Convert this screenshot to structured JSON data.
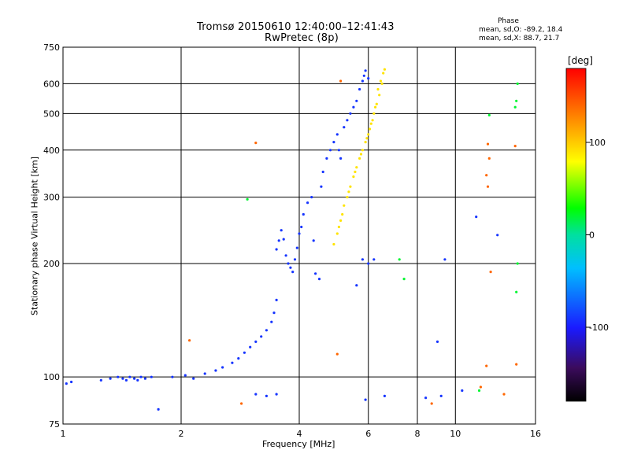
{
  "header": {
    "title_line1": "Tromsø 20150610 12:40:00–12:41:43",
    "title_line2": "RwPretec (8p)"
  },
  "phase_box": {
    "heading": "Phase",
    "line_o": "mean, sd,O: -89.2, 18.4",
    "line_x": "mean, sd,X: 88.7, 21.7"
  },
  "colorbar": {
    "title": "[deg]",
    "tick_labels": [
      "100",
      "0",
      "-100"
    ],
    "tick_values": [
      100,
      0,
      -100
    ],
    "range": [
      -180,
      180
    ],
    "colormap": "rainbow"
  },
  "chart_data": {
    "type": "scatter",
    "xlabel": "Frequency [MHz]",
    "ylabel": "Stationary phase Virtual Height [km]",
    "xscale": "log",
    "yscale": "log",
    "xlim": [
      1,
      16
    ],
    "ylim": [
      75,
      750
    ],
    "x_ticks": [
      1,
      2,
      4,
      6,
      8,
      10,
      16
    ],
    "x_tick_labels": [
      "1",
      "2",
      "4",
      "6",
      "8",
      "10",
      "16"
    ],
    "y_ticks": [
      75,
      100,
      200,
      300,
      400,
      500,
      600,
      750
    ],
    "y_tick_labels": [
      "75",
      "100",
      "200",
      "300",
      "400",
      "500",
      "600",
      "750"
    ],
    "grid": true,
    "color_dimension": "phase [deg]",
    "traces": [
      {
        "mode": "O",
        "phase_deg": -90,
        "points": [
          [
            1.02,
            96
          ],
          [
            1.05,
            97
          ],
          [
            1.25,
            98
          ],
          [
            1.32,
            99
          ],
          [
            1.38,
            100
          ],
          [
            1.42,
            99
          ],
          [
            1.45,
            98
          ],
          [
            1.48,
            100
          ],
          [
            1.52,
            99
          ],
          [
            1.55,
            98
          ],
          [
            1.58,
            100
          ],
          [
            1.62,
            99
          ],
          [
            1.68,
            100
          ],
          [
            1.75,
            82
          ],
          [
            1.9,
            100
          ],
          [
            2.05,
            101
          ],
          [
            2.15,
            99
          ],
          [
            2.3,
            102
          ],
          [
            2.45,
            104
          ],
          [
            2.55,
            106
          ],
          [
            2.7,
            109
          ],
          [
            2.8,
            112
          ],
          [
            2.9,
            116
          ],
          [
            3.0,
            120
          ],
          [
            3.1,
            124
          ],
          [
            3.2,
            128
          ],
          [
            3.3,
            133
          ],
          [
            3.4,
            140
          ],
          [
            3.45,
            148
          ],
          [
            3.5,
            160
          ],
          [
            3.5,
            218
          ],
          [
            3.55,
            230
          ],
          [
            3.6,
            245
          ],
          [
            3.65,
            232
          ],
          [
            3.7,
            210
          ],
          [
            3.75,
            200
          ],
          [
            3.8,
            195
          ],
          [
            3.85,
            190
          ],
          [
            3.9,
            205
          ],
          [
            3.95,
            220
          ],
          [
            4.0,
            240
          ],
          [
            4.05,
            250
          ],
          [
            4.1,
            270
          ],
          [
            4.2,
            290
          ],
          [
            4.3,
            300
          ],
          [
            4.35,
            230
          ],
          [
            4.4,
            188
          ],
          [
            4.5,
            182
          ],
          [
            4.55,
            320
          ],
          [
            4.6,
            350
          ],
          [
            4.7,
            380
          ],
          [
            4.8,
            400
          ],
          [
            4.9,
            420
          ],
          [
            5.0,
            440
          ],
          [
            5.05,
            400
          ],
          [
            5.1,
            380
          ],
          [
            5.2,
            460
          ],
          [
            5.3,
            480
          ],
          [
            5.4,
            500
          ],
          [
            5.5,
            520
          ],
          [
            5.6,
            540
          ],
          [
            5.7,
            580
          ],
          [
            5.8,
            610
          ],
          [
            5.85,
            630
          ],
          [
            5.9,
            650
          ],
          [
            6.0,
            620
          ],
          [
            5.6,
            175
          ],
          [
            5.8,
            205
          ],
          [
            6.0,
            200
          ],
          [
            6.2,
            205
          ],
          [
            3.1,
            90
          ],
          [
            3.3,
            89
          ],
          [
            3.5,
            90
          ],
          [
            5.9,
            87
          ],
          [
            6.6,
            89
          ],
          [
            8.4,
            88
          ],
          [
            9.2,
            89
          ],
          [
            10.4,
            92
          ],
          [
            11.3,
            266
          ],
          [
            12.8,
            238
          ],
          [
            9.0,
            124
          ],
          [
            9.4,
            205
          ]
        ]
      },
      {
        "mode": "X",
        "phase_deg": 90,
        "points": [
          [
            4.9,
            225
          ],
          [
            5.0,
            240
          ],
          [
            5.1,
            260
          ],
          [
            5.2,
            285
          ],
          [
            5.3,
            300
          ],
          [
            5.4,
            320
          ],
          [
            5.5,
            340
          ],
          [
            5.6,
            360
          ],
          [
            5.7,
            380
          ],
          [
            5.8,
            400
          ],
          [
            5.9,
            420
          ],
          [
            6.0,
            440
          ],
          [
            6.1,
            470
          ],
          [
            6.2,
            500
          ],
          [
            6.3,
            530
          ],
          [
            6.4,
            560
          ],
          [
            6.5,
            600
          ],
          [
            6.55,
            640
          ],
          [
            6.6,
            655
          ],
          [
            6.45,
            610
          ],
          [
            6.35,
            580
          ],
          [
            6.25,
            520
          ],
          [
            6.15,
            480
          ],
          [
            6.05,
            455
          ],
          [
            5.95,
            430
          ],
          [
            5.75,
            390
          ],
          [
            5.55,
            350
          ],
          [
            5.35,
            310
          ],
          [
            5.15,
            270
          ],
          [
            5.05,
            250
          ]
        ]
      },
      {
        "mode": "scattered",
        "phase_deg": 140,
        "points": [
          [
            3.1,
            418
          ],
          [
            2.85,
            85
          ],
          [
            2.1,
            125
          ],
          [
            5.1,
            610
          ],
          [
            12.1,
            415
          ],
          [
            12.2,
            380
          ],
          [
            12.0,
            343
          ],
          [
            12.1,
            320
          ],
          [
            12.3,
            190
          ],
          [
            14.3,
            108
          ],
          [
            12.0,
            107
          ],
          [
            14.2,
            410
          ],
          [
            11.6,
            94
          ],
          [
            8.7,
            85
          ],
          [
            13.3,
            90
          ],
          [
            5.0,
            115
          ]
        ]
      },
      {
        "mode": "scattered-cyan",
        "phase_deg": 20,
        "points": [
          [
            14.4,
            600
          ],
          [
            14.3,
            540
          ],
          [
            14.2,
            520
          ],
          [
            12.2,
            495
          ],
          [
            14.4,
            200
          ],
          [
            14.3,
            168
          ],
          [
            7.2,
            205
          ],
          [
            7.4,
            182
          ],
          [
            2.95,
            296
          ],
          [
            11.5,
            92
          ]
        ]
      }
    ]
  }
}
